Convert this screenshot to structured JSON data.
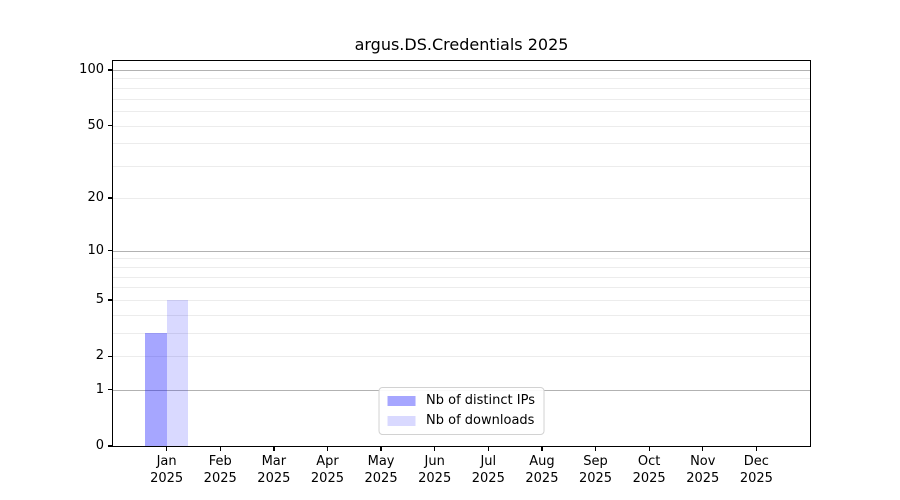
{
  "chart_data": {
    "type": "bar",
    "title": "argus.DS.Credentials 2025",
    "categories": [
      "Jan",
      "Feb",
      "Mar",
      "Apr",
      "May",
      "Jun",
      "Jul",
      "Aug",
      "Sep",
      "Oct",
      "Nov",
      "Dec"
    ],
    "category_year": "2025",
    "series": [
      {
        "name": "Nb of distinct IPs",
        "color": "rgba(0,0,255,0.35)",
        "values": [
          3,
          0,
          0,
          0,
          0,
          0,
          0,
          0,
          0,
          0,
          0,
          0
        ]
      },
      {
        "name": "Nb of downloads",
        "color": "rgba(0,0,255,0.15)",
        "values": [
          5,
          0,
          0,
          0,
          0,
          0,
          0,
          0,
          0,
          0,
          0,
          0
        ]
      }
    ],
    "xlabel": "",
    "ylabel": "",
    "yscale": "log1p",
    "ylim": [
      0,
      110
    ],
    "yticks": [
      0,
      1,
      2,
      5,
      10,
      20,
      50,
      100
    ],
    "major_grid_values": [
      1,
      10,
      100
    ],
    "minor_grid_values": [
      2,
      3,
      4,
      5,
      6,
      7,
      8,
      9,
      20,
      30,
      40,
      50,
      60,
      70,
      80,
      90
    ],
    "grid": true,
    "legend_position": "lower center"
  },
  "colors": {
    "major_grid": "#b2b2b2",
    "minor_grid": "#ececec",
    "spine": "#000000",
    "legend_border": "#d2d2d2"
  }
}
